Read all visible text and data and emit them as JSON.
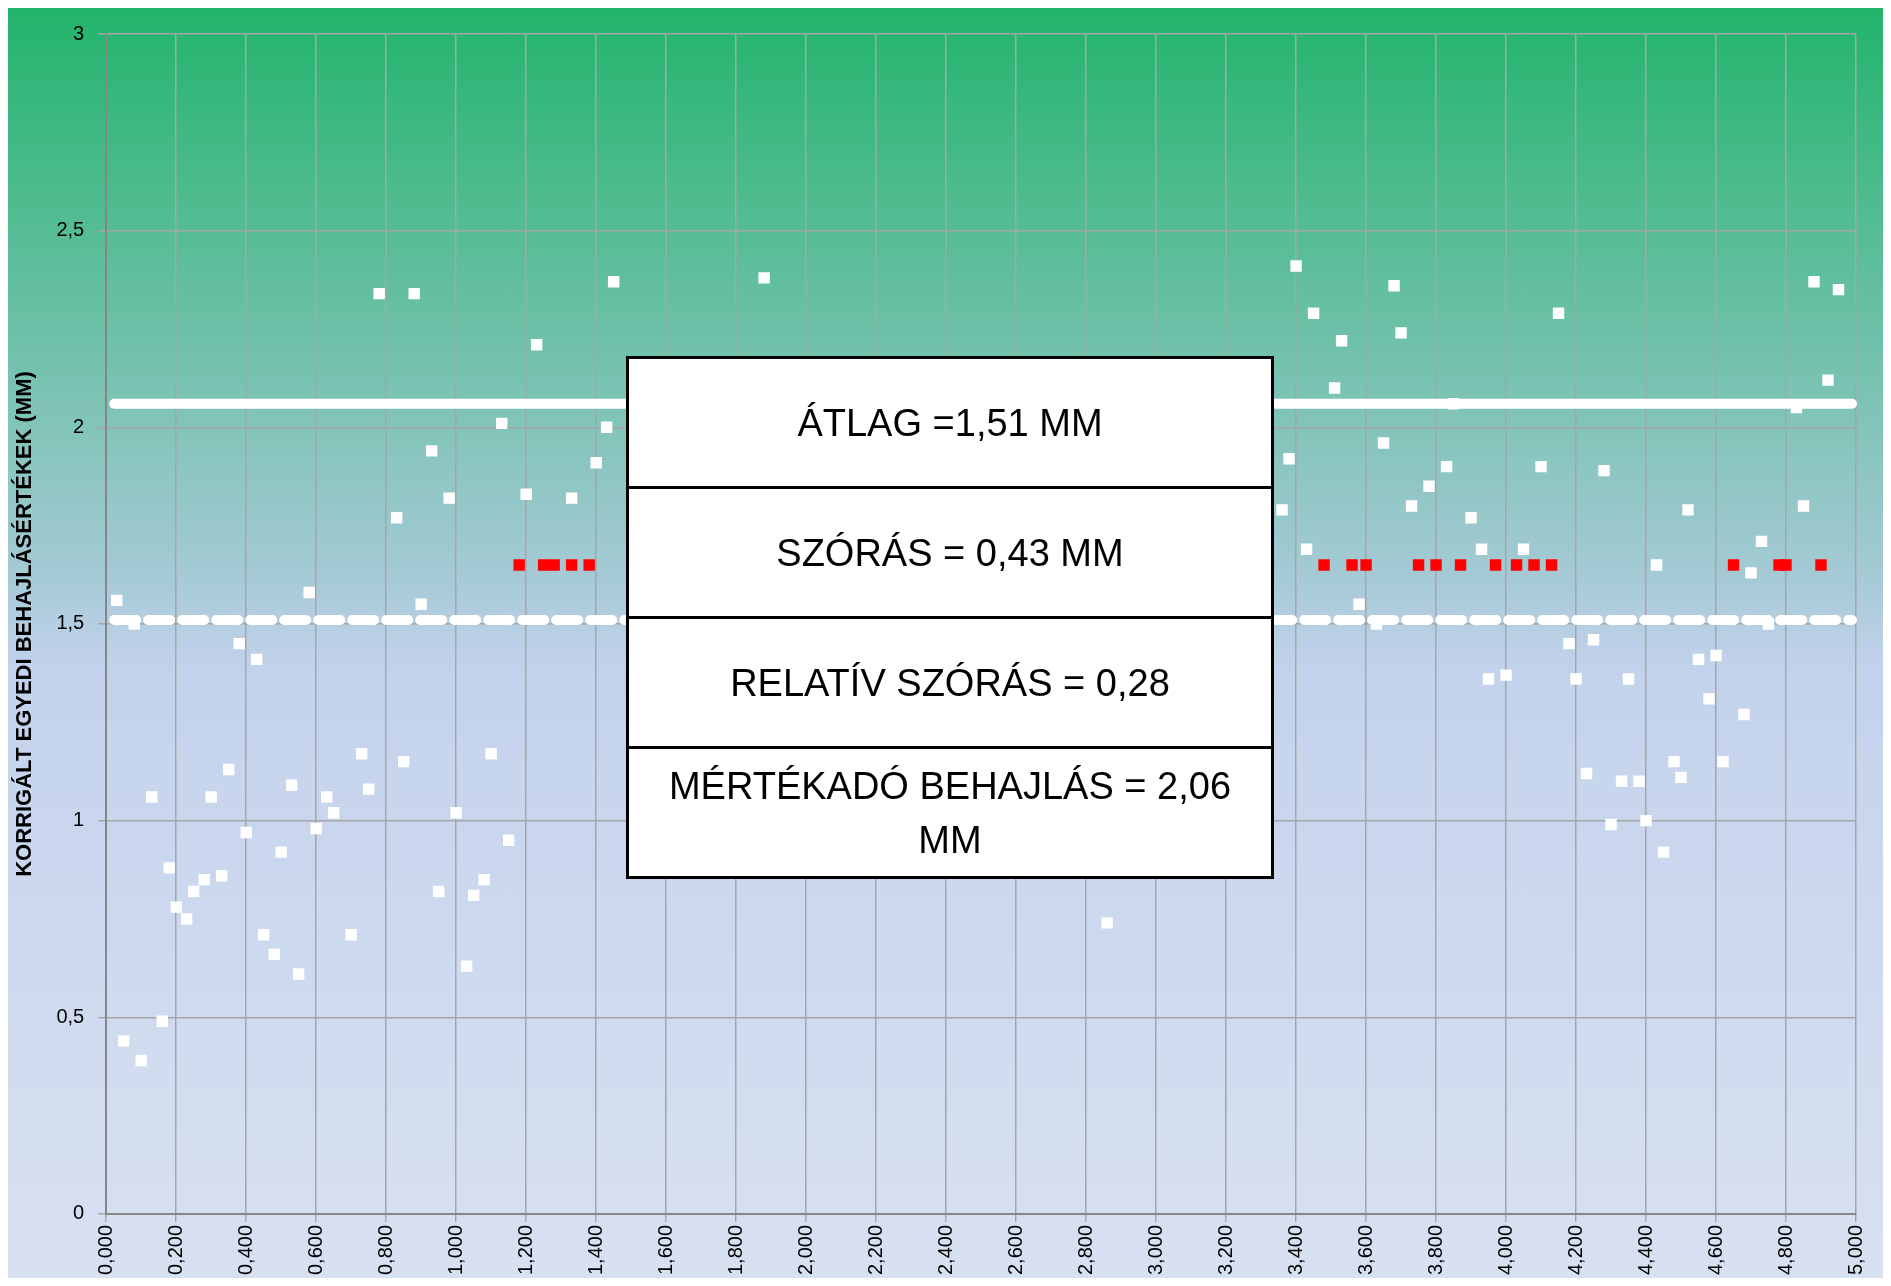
{
  "chart_data": {
    "type": "scatter",
    "ylabel": "KORRIGÁLT EGYEDI BEHAJLÁSÉRTÉKEK (MM)",
    "xlim": [
      0,
      5
    ],
    "ylim": [
      0,
      3
    ],
    "xticks": [
      {
        "value": 0,
        "label": "0,000"
      },
      {
        "value": 0.2,
        "label": "0,200"
      },
      {
        "value": 0.4,
        "label": "0,400"
      },
      {
        "value": 0.6,
        "label": "0,600"
      },
      {
        "value": 0.8,
        "label": "0,800"
      },
      {
        "value": 1,
        "label": "1,000"
      },
      {
        "value": 1.2,
        "label": "1,200"
      },
      {
        "value": 1.4,
        "label": "1,400"
      },
      {
        "value": 1.6,
        "label": "1,600"
      },
      {
        "value": 1.8,
        "label": "1,800"
      },
      {
        "value": 2,
        "label": "2,000"
      },
      {
        "value": 2.2,
        "label": "2,200"
      },
      {
        "value": 2.4,
        "label": "2,400"
      },
      {
        "value": 2.6,
        "label": "2,600"
      },
      {
        "value": 2.8,
        "label": "2,800"
      },
      {
        "value": 3,
        "label": "3,000"
      },
      {
        "value": 3.2,
        "label": "3,200"
      },
      {
        "value": 3.4,
        "label": "3,400"
      },
      {
        "value": 3.6,
        "label": "3,600"
      },
      {
        "value": 3.8,
        "label": "3,800"
      },
      {
        "value": 4,
        "label": "4,000"
      },
      {
        "value": 4.2,
        "label": "4,200"
      },
      {
        "value": 4.4,
        "label": "4,400"
      },
      {
        "value": 4.6,
        "label": "4,600"
      },
      {
        "value": 4.8,
        "label": "4,800"
      },
      {
        "value": 5,
        "label": "5,000"
      }
    ],
    "yticks": [
      0,
      {
        "value": 0.5,
        "label": "0,5"
      },
      1,
      {
        "value": 1.5,
        "label": "1,5"
      },
      2,
      {
        "value": 2.5,
        "label": "2,5"
      },
      3
    ],
    "grid": true,
    "legend": false,
    "marker": "square",
    "series": [
      {
        "color": "#ffffff",
        "x": [
          0.03,
          0.08,
          0.05,
          0.1,
          0.13,
          0.16,
          0.18,
          0.2,
          0.23,
          0.25,
          0.28,
          0.3,
          0.33,
          0.35,
          0.38,
          0.4,
          0.43,
          0.45,
          0.48,
          0.5,
          0.53,
          0.55,
          0.58,
          0.6,
          0.63,
          0.65,
          0.7,
          0.73,
          0.75,
          0.78,
          0.83,
          0.85,
          0.88,
          0.9,
          0.93,
          0.95,
          0.98,
          1,
          1.03,
          1.05,
          1.08,
          1.1,
          1.13,
          1.15,
          1.2,
          1.23,
          1.33,
          1.4,
          1.43,
          1.45,
          1.88,
          2.86,
          3.36,
          3.38,
          3.4,
          3.43,
          3.45,
          3.51,
          3.53,
          3.58,
          3.63,
          3.65,
          3.68,
          3.7,
          3.73,
          3.78,
          3.83,
          3.85,
          3.9,
          3.93,
          3.95,
          4,
          4.05,
          4.1,
          4.15,
          4.18,
          4.2,
          4.23,
          4.25,
          4.28,
          4.3,
          4.33,
          4.35,
          4.38,
          4.4,
          4.43,
          4.45,
          4.48,
          4.5,
          4.52,
          4.55,
          4.58,
          4.6,
          4.62,
          4.68,
          4.7,
          4.73,
          4.75,
          4.83,
          4.85,
          4.88,
          4.92,
          4.95
        ],
        "values": [
          1.56,
          1.5,
          0.44,
          0.39,
          1.06,
          0.49,
          0.88,
          0.78,
          0.75,
          0.82,
          0.85,
          1.06,
          0.86,
          1.13,
          1.45,
          0.97,
          1.41,
          0.71,
          0.66,
          0.92,
          1.09,
          0.61,
          1.58,
          0.98,
          1.06,
          1.02,
          0.71,
          1.17,
          1.08,
          2.34,
          1.77,
          1.15,
          2.34,
          1.55,
          1.94,
          0.82,
          1.82,
          1.02,
          0.63,
          0.81,
          0.85,
          1.17,
          2.01,
          0.95,
          1.83,
          2.21,
          1.82,
          1.91,
          2,
          2.37,
          2.38,
          0.74,
          1.79,
          1.92,
          2.41,
          1.69,
          2.29,
          2.1,
          2.22,
          1.55,
          1.5,
          1.96,
          2.36,
          2.24,
          1.8,
          1.85,
          1.9,
          2.06,
          1.77,
          1.69,
          1.36,
          1.37,
          1.69,
          1.9,
          2.29,
          1.45,
          1.36,
          1.12,
          1.46,
          1.89,
          0.99,
          1.1,
          1.36,
          1.1,
          1,
          1.65,
          0.92,
          1.15,
          1.11,
          1.79,
          1.41,
          1.31,
          1.42,
          1.15,
          1.27,
          1.63,
          1.71,
          1.5,
          2.05,
          1.8,
          2.37,
          2.12,
          2.35
        ]
      },
      {
        "color": "#ff0000",
        "x": [
          1.18,
          1.25,
          1.28,
          1.33,
          1.38,
          3.48,
          3.56,
          3.6,
          3.75,
          3.8,
          3.87,
          3.97,
          4.03,
          4.08,
          4.13,
          4.65,
          4.78,
          4.8,
          4.9
        ],
        "values": [
          1.65,
          1.65,
          1.65,
          1.65,
          1.65,
          1.65,
          1.65,
          1.65,
          1.65,
          1.65,
          1.65,
          1.65,
          1.65,
          1.65,
          1.65,
          1.65,
          1.65,
          1.65,
          1.65
        ]
      }
    ],
    "ref_lines": [
      {
        "axis": "y",
        "value": 2.06,
        "color": "#ffffff",
        "line_style": "solid"
      },
      {
        "axis": "y",
        "value": 1.51,
        "color": "#ffffff",
        "line_style": "dashed"
      }
    ],
    "annotations": [
      "ÁTLAG =1,51 MM",
      "SZÓRÁS = 0,43 MM",
      "RELATÍV SZÓRÁS = 0,28",
      "MÉRTÉKADÓ BEHAJLÁS = 2,06 MM"
    ]
  }
}
